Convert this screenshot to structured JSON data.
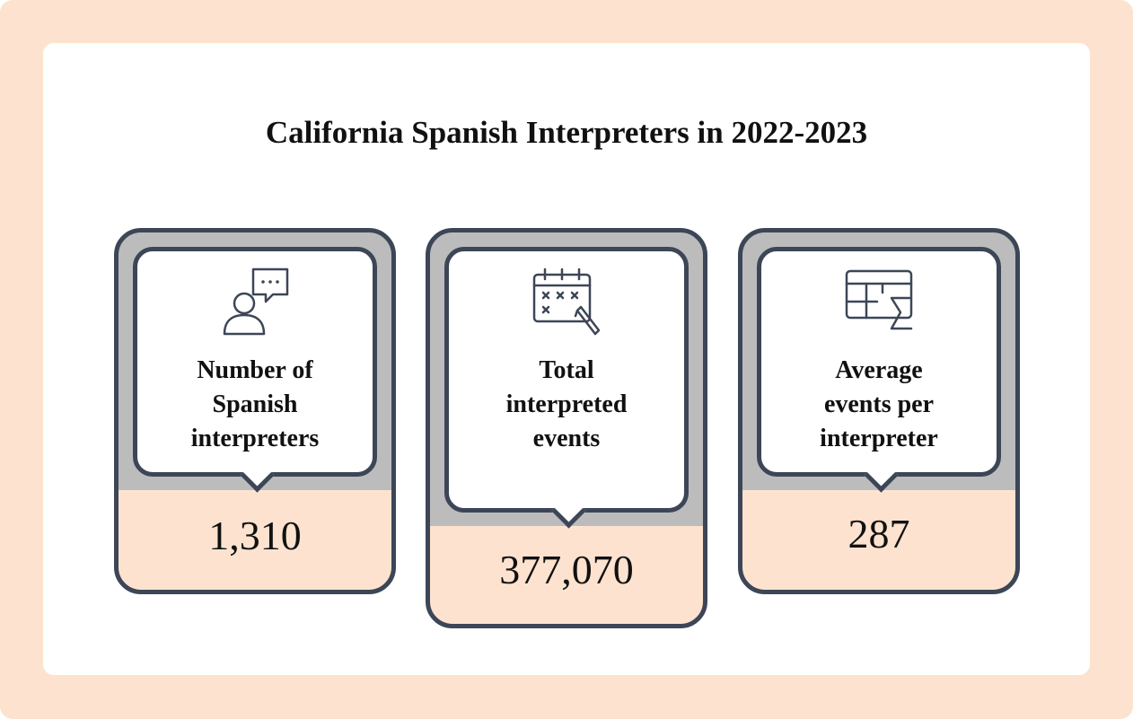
{
  "title": "California Spanish Interpreters in 2022-2023",
  "cards": [
    {
      "icon": "interpreter-speech-bubble-icon",
      "label": "Number of\nSpanish\ninterpreters",
      "value": "1,310"
    },
    {
      "icon": "calendar-pencil-icon",
      "label": "Total\ninterpreted\nevents",
      "value": "377,070"
    },
    {
      "icon": "table-sum-icon",
      "label": "Average\nevents per\ninterpreter",
      "value": "287"
    }
  ],
  "colors": {
    "frame": "#fde3cf",
    "card_border": "#3d4657",
    "card_gray": "#bcbcbc",
    "value_band": "#fde3cf"
  }
}
